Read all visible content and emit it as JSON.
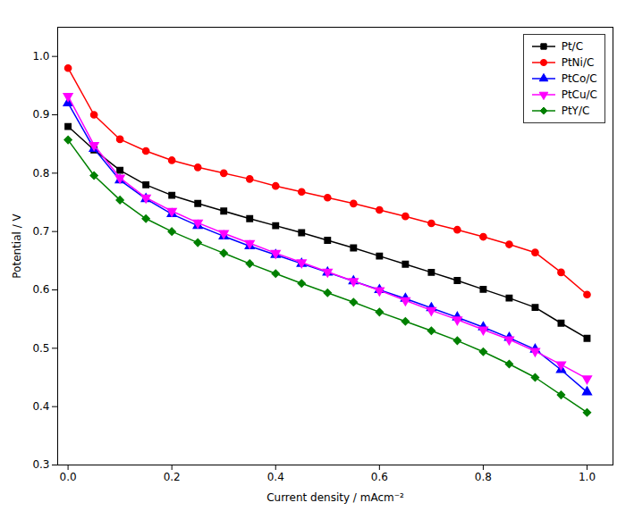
{
  "chart_data": {
    "type": "line",
    "xlabel": "Current density / mAcm⁻²",
    "ylabel": "Potential / V",
    "x": [
      0.0,
      0.05,
      0.1,
      0.15,
      0.2,
      0.25,
      0.3,
      0.35,
      0.4,
      0.45,
      0.5,
      0.55,
      0.6,
      0.65,
      0.7,
      0.75,
      0.8,
      0.85,
      0.9,
      0.95,
      1.0
    ],
    "series": [
      {
        "name": "Pt/C",
        "color": "#000000",
        "marker": "square",
        "values": [
          0.88,
          0.84,
          0.805,
          0.78,
          0.762,
          0.748,
          0.735,
          0.722,
          0.71,
          0.698,
          0.685,
          0.672,
          0.658,
          0.644,
          0.63,
          0.616,
          0.601,
          0.586,
          0.57,
          0.543,
          0.517
        ]
      },
      {
        "name": "PtNi/C",
        "color": "#ff0000",
        "marker": "circle",
        "values": [
          0.98,
          0.9,
          0.858,
          0.838,
          0.822,
          0.81,
          0.8,
          0.79,
          0.778,
          0.768,
          0.758,
          0.748,
          0.737,
          0.726,
          0.714,
          0.703,
          0.691,
          0.678,
          0.664,
          0.63,
          0.592
        ]
      },
      {
        "name": "PtCo/C",
        "color": "#0000ff",
        "marker": "triangle-up",
        "values": [
          0.92,
          0.842,
          0.788,
          0.756,
          0.73,
          0.71,
          0.692,
          0.675,
          0.66,
          0.645,
          0.63,
          0.615,
          0.6,
          0.585,
          0.569,
          0.553,
          0.536,
          0.518,
          0.498,
          0.463,
          0.425
        ]
      },
      {
        "name": "PtCu/C",
        "color": "#ff00ff",
        "marker": "triangle-down",
        "values": [
          0.932,
          0.848,
          0.792,
          0.758,
          0.735,
          0.715,
          0.697,
          0.68,
          0.663,
          0.647,
          0.631,
          0.615,
          0.599,
          0.582,
          0.565,
          0.549,
          0.532,
          0.515,
          0.495,
          0.472,
          0.448
        ]
      },
      {
        "name": "PtY/C",
        "color": "#008000",
        "marker": "diamond",
        "values": [
          0.857,
          0.796,
          0.754,
          0.722,
          0.7,
          0.681,
          0.663,
          0.645,
          0.628,
          0.611,
          0.595,
          0.579,
          0.562,
          0.546,
          0.53,
          0.513,
          0.494,
          0.473,
          0.45,
          0.42,
          0.39
        ]
      }
    ],
    "xlim": [
      -0.02,
      1.05
    ],
    "ylim": [
      0.3,
      1.05
    ],
    "xticks": [
      {
        "value": 0.0,
        "label": "0.0"
      },
      0.2,
      0.4,
      0.6,
      0.8,
      {
        "value": 1.0,
        "label": "1.0"
      }
    ],
    "yticks": [
      0.3,
      0.4,
      0.5,
      0.6,
      0.7,
      0.8,
      0.9,
      {
        "value": 1.0,
        "label": "1.0"
      }
    ],
    "grid": false,
    "legend": "upper right"
  }
}
